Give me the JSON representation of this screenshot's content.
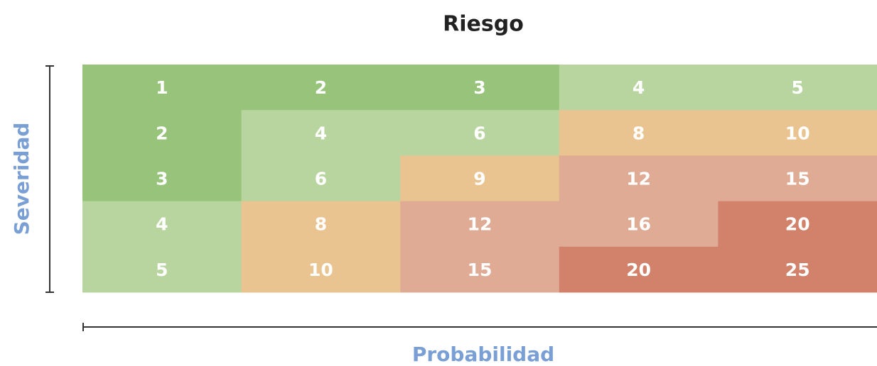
{
  "chart_data": {
    "type": "heatmap",
    "title": "Riesgo",
    "xlabel": "Probabilidad",
    "ylabel": "Severidad",
    "values": [
      [
        1,
        2,
        3,
        4,
        5
      ],
      [
        2,
        4,
        6,
        8,
        10
      ],
      [
        3,
        6,
        9,
        12,
        15
      ],
      [
        4,
        8,
        12,
        16,
        20
      ],
      [
        5,
        10,
        15,
        20,
        25
      ]
    ],
    "cell_colors": [
      [
        "#97c47a",
        "#97c47a",
        "#97c47a",
        "#b8d59f",
        "#b8d59f"
      ],
      [
        "#97c47a",
        "#b8d59f",
        "#b8d59f",
        "#eac490",
        "#eac490"
      ],
      [
        "#97c47a",
        "#b8d59f",
        "#eac490",
        "#dfab94",
        "#dfab94"
      ],
      [
        "#b8d59f",
        "#eac490",
        "#dfab94",
        "#dfab94",
        "#d2826b"
      ],
      [
        "#b8d59f",
        "#eac490",
        "#dfab94",
        "#d2826b",
        "#d2826b"
      ]
    ],
    "label_color": "#ffffff",
    "title_color": "#222222",
    "axis_label_color": "#7a9fd4"
  }
}
